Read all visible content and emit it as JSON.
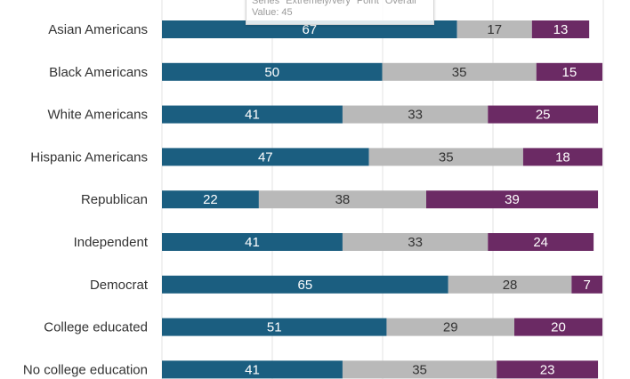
{
  "chart_data": {
    "type": "bar",
    "orientation": "horizontal",
    "stacked": true,
    "categories": [
      "Asian Americans",
      "Black Americans",
      "White Americans",
      "Hispanic Americans",
      "Republican",
      "Independent",
      "Democrat",
      "College educated",
      "No college education"
    ],
    "series": [
      {
        "color": "#1b5e80",
        "label_color": "#ffffff",
        "values": [
          67,
          50,
          41,
          47,
          22,
          41,
          65,
          51,
          41
        ]
      },
      {
        "color": "#b9b9b9",
        "label_color": "#333333",
        "values": [
          17,
          35,
          33,
          35,
          38,
          33,
          28,
          29,
          35
        ]
      },
      {
        "color": "#6b2a64",
        "label_color": "#ffffff",
        "values": [
          13,
          15,
          25,
          18,
          39,
          24,
          7,
          20,
          23
        ]
      }
    ],
    "xlim": [
      0,
      100
    ],
    "grid": true
  },
  "tooltip": {
    "line1": "Series \"Extremely/very\" Point \"Overall\"",
    "line2": "Value: 45"
  }
}
